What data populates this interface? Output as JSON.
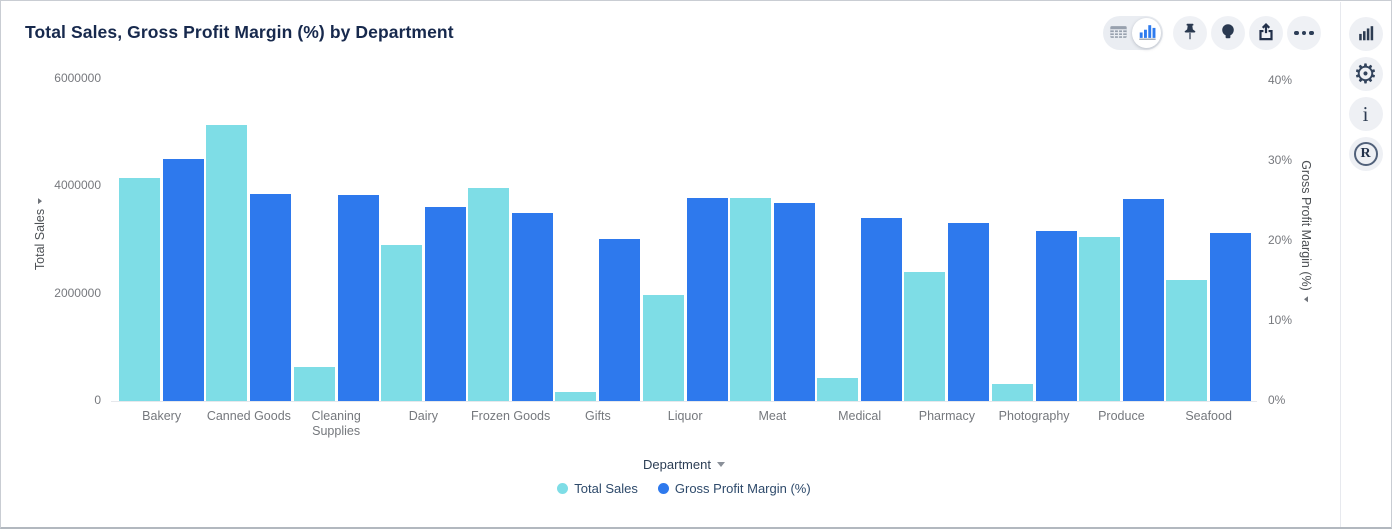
{
  "header": {
    "title": "Total Sales, Gross Profit Margin (%) by Department"
  },
  "toolbar": {
    "icons": [
      "table-view",
      "chart-view",
      "pin",
      "insights-bulb",
      "export",
      "more-options"
    ],
    "selected_view": "chart-view"
  },
  "rail": {
    "icons": [
      "chart-type",
      "settings",
      "info",
      "reveal-logo"
    ]
  },
  "colors": {
    "series_total_sales": "#7EDDE6",
    "series_gross_profit_margin": "#2E79ED",
    "title_text": "#17294d",
    "axis_text": "#77797e",
    "legend_text": "#2e4a6b",
    "icon_dark": "#2d3c52",
    "icon_blue": "#2e7bee"
  },
  "chart_data": {
    "type": "bar",
    "title": "Total Sales, Gross Profit Margin (%) by Department",
    "categories": [
      "Bakery",
      "Canned Goods",
      "Cleaning Supplies",
      "Dairy",
      "Frozen Goods",
      "Gifts",
      "Liquor",
      "Meat",
      "Medical",
      "Pharmacy",
      "Photography",
      "Produce",
      "Seafood"
    ],
    "series": [
      {
        "name": "Total Sales",
        "axis": "left",
        "color": "#7EDDE6",
        "values": [
          4150000,
          5140000,
          630000,
          2910000,
          3970000,
          175000,
          1980000,
          3790000,
          430000,
          2410000,
          320000,
          3060000,
          2250000
        ]
      },
      {
        "name": "Gross Profit Margin (%)",
        "axis": "right",
        "color": "#2E79ED",
        "values": [
          30.2,
          25.9,
          25.8,
          24.2,
          23.5,
          20.2,
          25.4,
          24.8,
          22.9,
          22.2,
          21.2,
          25.3,
          21.0
        ]
      }
    ],
    "left_axis": {
      "title": "Total Sales",
      "min": 0,
      "max": 6000000,
      "ticks": [
        0,
        2000000,
        4000000,
        6000000
      ],
      "tick_labels": [
        "0",
        "2000000",
        "4000000",
        "6000000"
      ]
    },
    "right_axis": {
      "title": "Gross Profit Margin (%)",
      "min": 0,
      "max": 40,
      "ticks": [
        0,
        10,
        20,
        30,
        40
      ],
      "tick_labels": [
        "0%",
        "10%",
        "20%",
        "30%",
        "40%"
      ]
    },
    "xlabel": "Department",
    "grid": false,
    "legend_position": "bottom"
  }
}
